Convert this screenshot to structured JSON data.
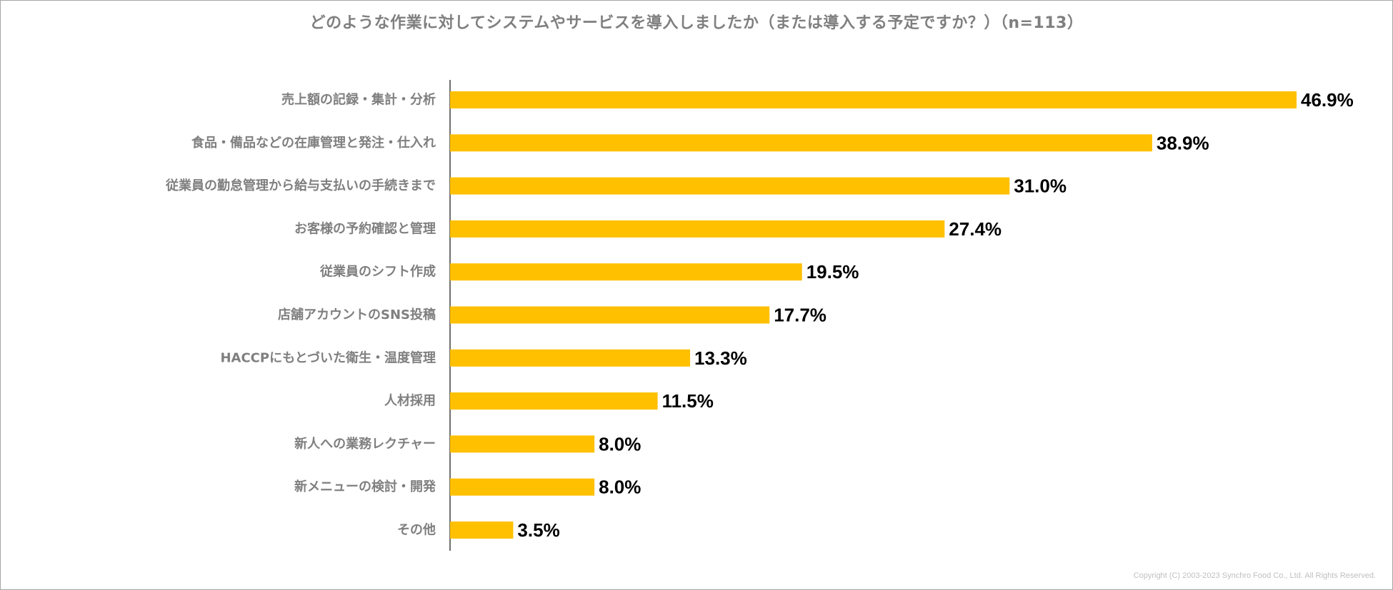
{
  "chart_data": {
    "type": "bar",
    "orientation": "horizontal",
    "title": "どのような作業に対してシステムやサービスを導入しましたか（または導入する予定ですか？）（n=113）",
    "categories": [
      "売上額の記録・集計・分析",
      "食品・備品などの在庫管理と発注・仕入れ",
      "従業員の勤怠管理から給与支払いの手続きまで",
      "お客様の予約確認と管理",
      "従業員のシフト作成",
      "店舗アカウントのSNS投稿",
      "HACCPにもとづいた衛生・温度管理",
      "人材採用",
      "新人への業務レクチャー",
      "新メニューの検討・開発",
      "その他"
    ],
    "values": [
      46.9,
      38.9,
      31.0,
      27.4,
      19.5,
      17.7,
      13.3,
      11.5,
      8.0,
      8.0,
      3.5
    ],
    "value_labels": [
      "46.9%",
      "38.9%",
      "31.0%",
      "27.4%",
      "19.5%",
      "17.7%",
      "13.3%",
      "11.5%",
      "8.0%",
      "8.0%",
      "3.5%"
    ],
    "unit": "%",
    "xlim": [
      0,
      50
    ],
    "grid": false,
    "legend": false,
    "bar_color": "#FFC000",
    "xlabel": "",
    "ylabel": ""
  },
  "footer": {
    "copyright": "Copyright (C) 2003-2023   Synchro Food Co., Ltd. All Rights Reserved."
  },
  "colors": {
    "title": "#7f7f7f",
    "category_label": "#7f7f7f",
    "value_label": "#000000",
    "axis": "#404040"
  }
}
